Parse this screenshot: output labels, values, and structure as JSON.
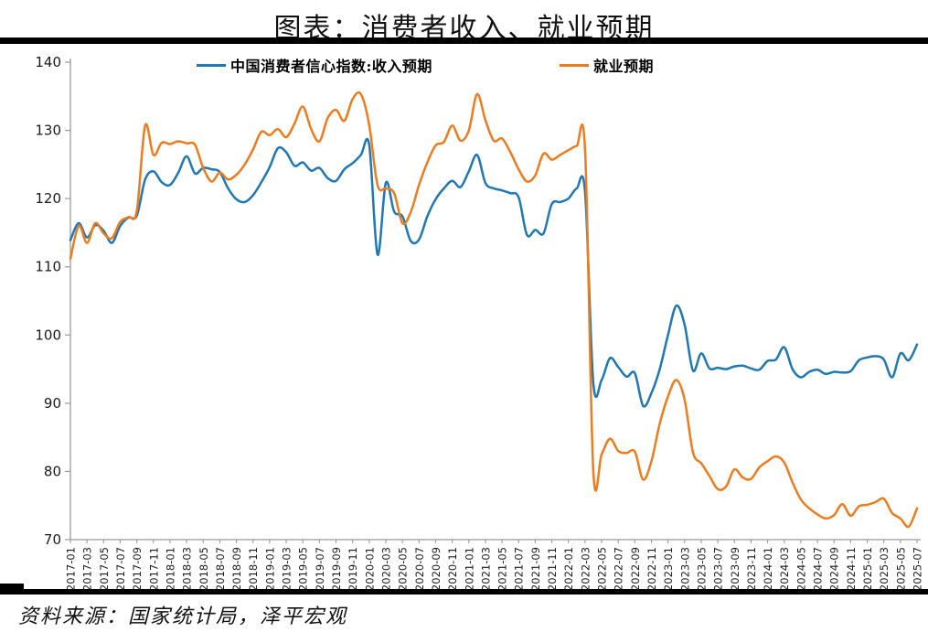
{
  "header": {
    "title": "图表：消费者收入、就业预期"
  },
  "footer": {
    "source": "资料来源：国家统计局，泽平宏观"
  },
  "colors": {
    "income_line": "#1F77B4",
    "employment_line": "#ED7C1F",
    "axis": "#9B9B9B",
    "bars": "#000000"
  },
  "chart_data": {
    "type": "line",
    "title": "图表：消费者收入、就业预期",
    "x_start": "2017-01",
    "x_end": "2025-07",
    "x_frequency": "monthly",
    "x_tick_labels": [
      "2017-01",
      "2017-03",
      "2017-05",
      "2017-07",
      "2017-09",
      "2017-11",
      "2018-01",
      "2018-03",
      "2018-05",
      "2018-07",
      "2018-09",
      "2018-11",
      "2019-01",
      "2019-03",
      "2019-05",
      "2019-07",
      "2019-09",
      "2019-11",
      "2020-01",
      "2020-03",
      "2020-05",
      "2020-07",
      "2020-09",
      "2020-11",
      "2021-01",
      "2021-03",
      "2021-05",
      "2021-07",
      "2021-09",
      "2021-11",
      "2022-01",
      "2022-03",
      "2022-05",
      "2022-07",
      "2022-09",
      "2022-11",
      "2023-01",
      "2023-03",
      "2023-05",
      "2023-07",
      "2023-09",
      "2023-11",
      "2024-01",
      "2024-03",
      "2024-05",
      "2024-07",
      "2024-09",
      "2024-11",
      "2025-01",
      "2025-03",
      "2025-05",
      "2025-07"
    ],
    "y_tick_labels": [
      "70",
      "80",
      "90",
      "100",
      "110",
      "120",
      "130",
      "140"
    ],
    "ylim": [
      70,
      140
    ],
    "grid": false,
    "legend_position": "top",
    "series": [
      {
        "name": "中国消费者信心指数:收入预期",
        "color": "#1F77B4",
        "values": [
          113.9,
          116.4,
          114.3,
          116.1,
          115.3,
          113.5,
          116.0,
          117.2,
          117.5,
          122.8,
          124.0,
          122.4,
          122.0,
          123.8,
          126.2,
          123.7,
          124.5,
          124.3,
          123.9,
          121.5,
          119.9,
          119.5,
          120.5,
          122.4,
          124.6,
          127.4,
          126.8,
          124.8,
          125.3,
          124.1,
          124.5,
          123.0,
          122.6,
          124.3,
          125.2,
          126.4,
          127.9,
          111.8,
          122.3,
          118.1,
          117.4,
          113.8,
          114.0,
          117.4,
          119.9,
          121.5,
          122.6,
          121.7,
          124.0,
          126.4,
          122.3,
          121.5,
          121.2,
          120.8,
          120.2,
          114.7,
          115.4,
          114.9,
          119.2,
          119.5,
          120.0,
          121.5,
          121.0,
          93.0,
          93.4,
          96.6,
          95.3,
          93.9,
          94.4,
          89.6,
          91.5,
          95.0,
          100.0,
          104.3,
          101.5,
          94.8,
          97.3,
          95.1,
          95.2,
          95.0,
          95.4,
          95.5,
          95.1,
          94.9,
          96.2,
          96.4,
          98.2,
          95.0,
          93.8,
          94.6,
          94.9,
          94.3,
          94.6,
          94.5,
          94.7,
          96.3,
          96.7,
          96.9,
          96.4,
          93.8,
          97.3,
          96.3,
          98.6
        ]
      },
      {
        "name": "就业预期",
        "color": "#ED7C1F",
        "values": [
          111.2,
          116.0,
          113.5,
          116.4,
          114.9,
          114.2,
          116.6,
          117.3,
          118.2,
          130.7,
          126.4,
          128.2,
          128.0,
          128.4,
          128.1,
          127.9,
          124.5,
          122.5,
          123.8,
          122.8,
          123.5,
          125.0,
          127.2,
          129.8,
          129.3,
          130.2,
          129.0,
          131.0,
          133.5,
          130.2,
          128.4,
          131.8,
          133.0,
          131.4,
          134.6,
          135.3,
          130.8,
          122.0,
          121.5,
          120.8,
          116.4,
          118.0,
          122.0,
          125.3,
          127.8,
          128.3,
          130.7,
          128.5,
          130.0,
          135.3,
          131.5,
          128.5,
          128.8,
          126.8,
          124.3,
          122.5,
          123.4,
          126.6,
          125.7,
          126.4,
          127.1,
          127.7,
          127.2,
          80.1,
          82.5,
          84.8,
          83.0,
          82.7,
          82.9,
          78.8,
          81.5,
          87.0,
          91.0,
          93.4,
          90.5,
          82.8,
          81.2,
          79.3,
          77.4,
          77.8,
          80.3,
          79.1,
          78.9,
          80.6,
          81.5,
          82.2,
          81.3,
          78.4,
          75.9,
          74.6,
          73.7,
          73.1,
          73.6,
          75.2,
          73.5,
          74.9,
          75.1,
          75.5,
          76.0,
          73.9,
          73.1,
          71.9,
          74.6
        ]
      }
    ]
  }
}
